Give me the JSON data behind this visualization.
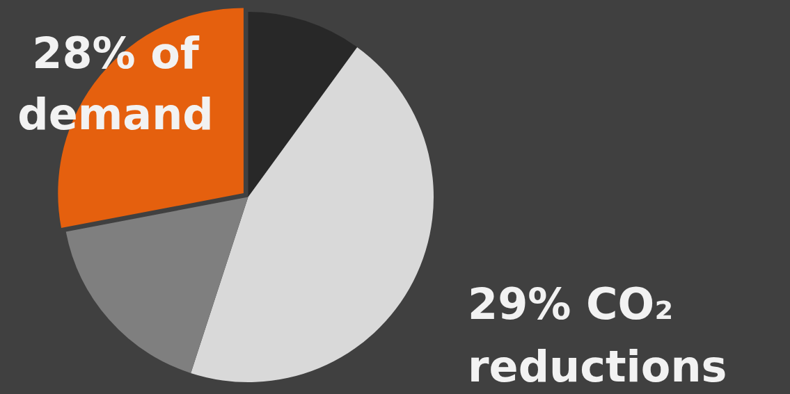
{
  "chart_data": {
    "type": "pie",
    "categories": [
      null,
      null,
      null,
      null
    ],
    "values": [
      10,
      45,
      17,
      28
    ],
    "colors": [
      "#282828",
      "#d9d9d9",
      "#7f7f7f",
      "#e5600e"
    ],
    "value_labels": [
      null,
      null,
      null,
      "28% of demand"
    ],
    "annotations": [
      "29% CO₂ reductions"
    ]
  }
}
